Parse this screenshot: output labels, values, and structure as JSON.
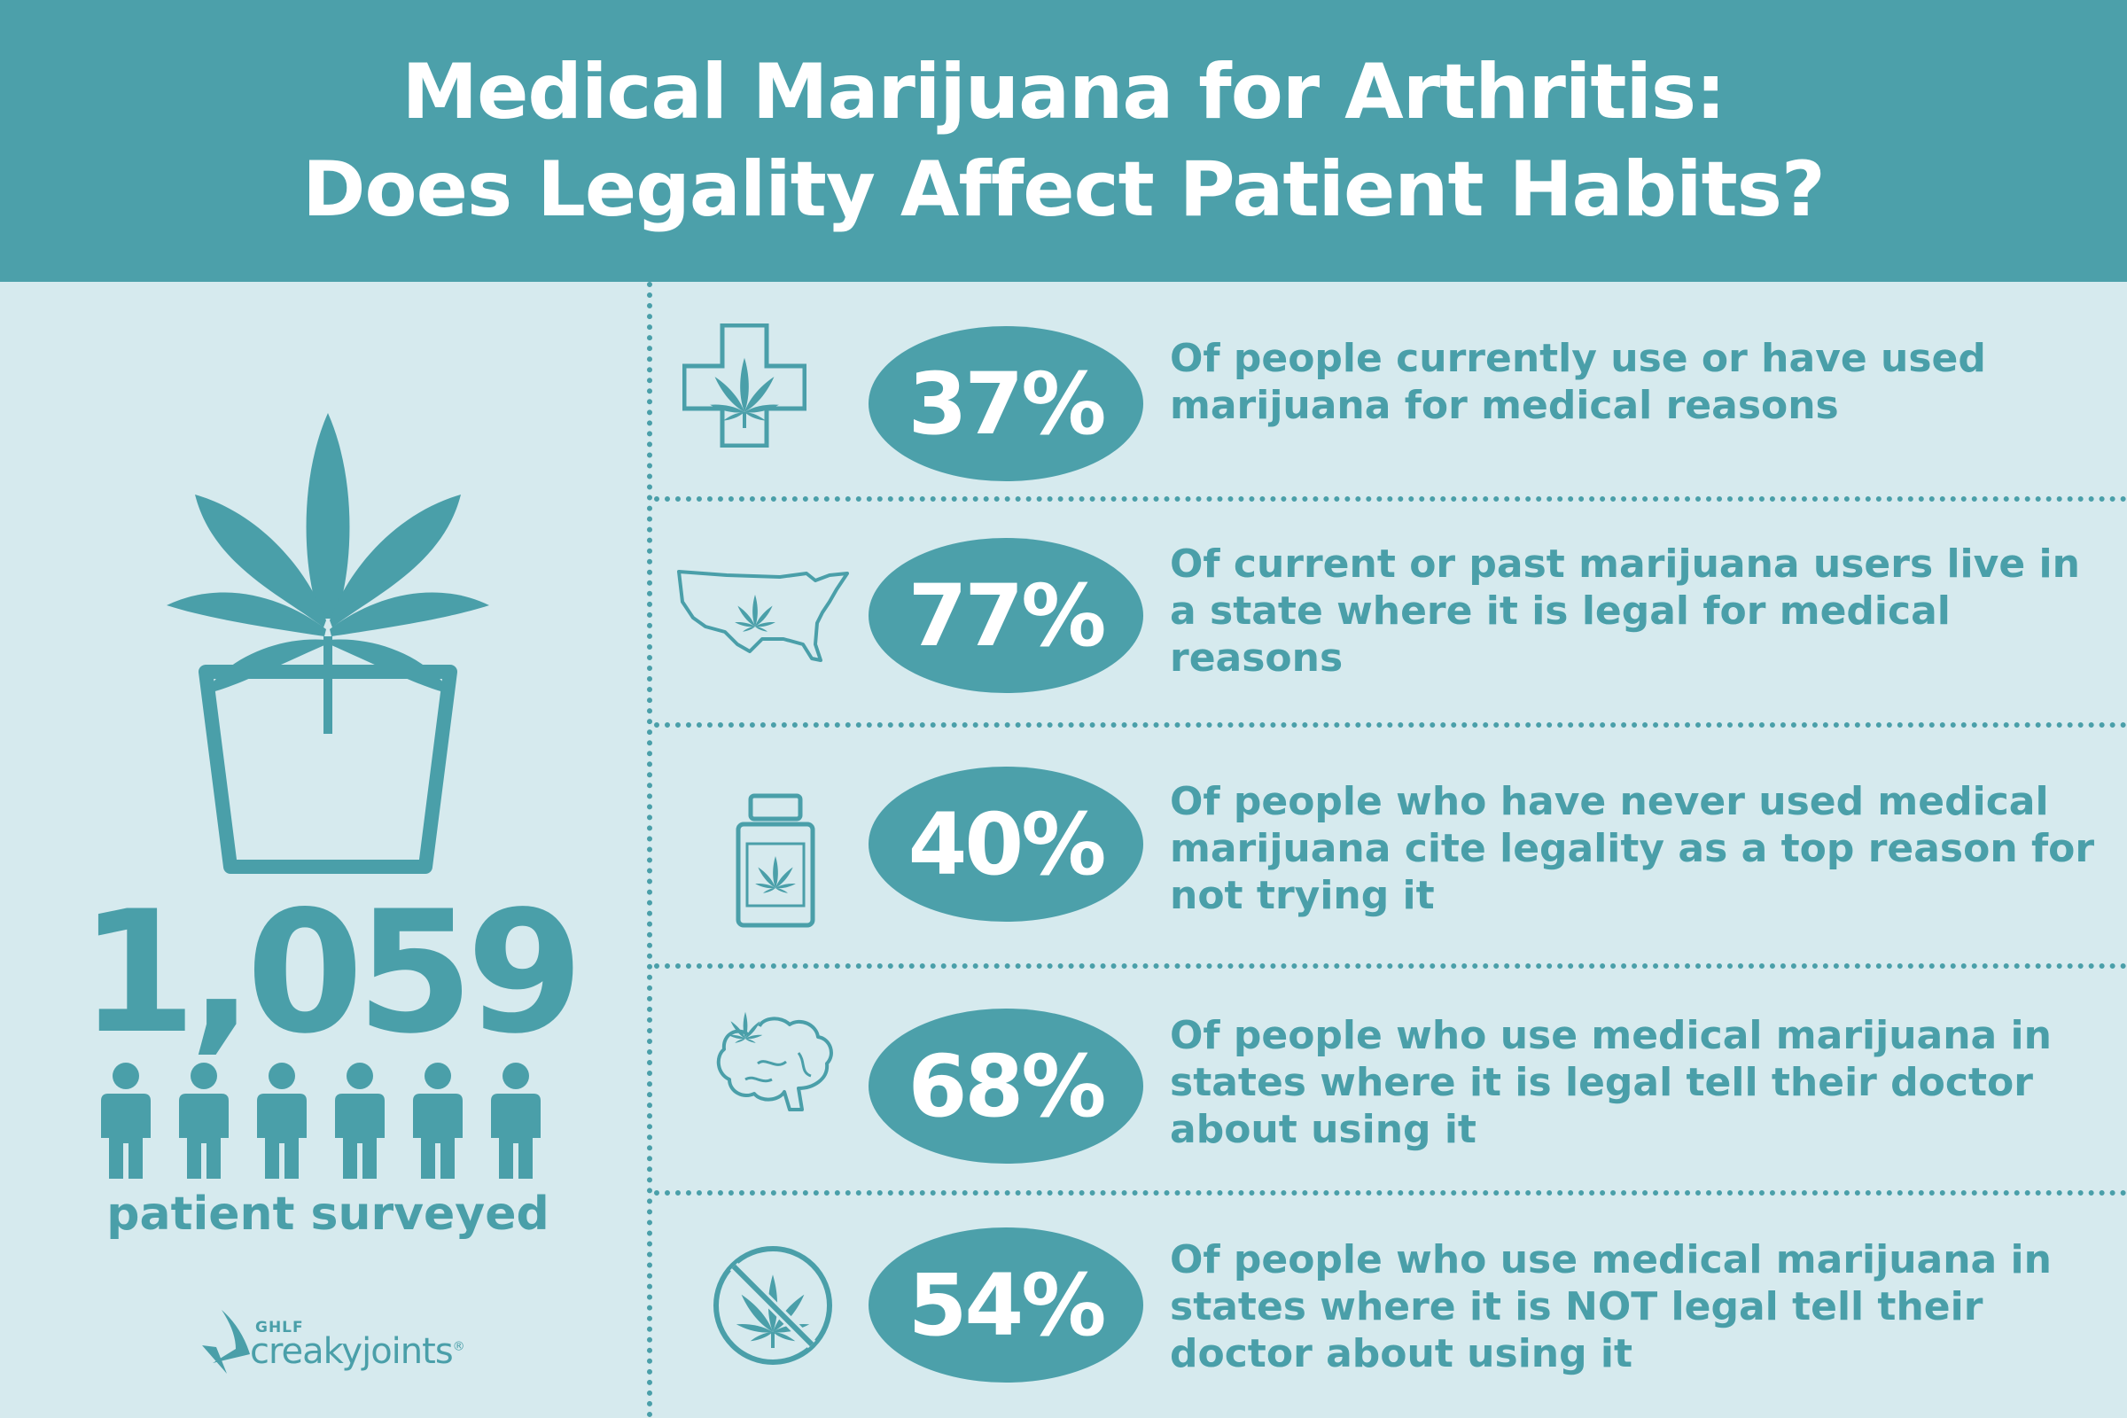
{
  "header": {
    "title_line1": "Medical Marijuana for Arthritis:",
    "title_line2": "Does Legality Affect Patient Habits?"
  },
  "left": {
    "count": "1,059",
    "label": "patient surveyed",
    "people_icons": 6,
    "logo": {
      "org": "GHLF",
      "brand": "creakyjoints",
      "registered": "®"
    }
  },
  "stats": [
    {
      "icon": "cross-leaf-icon",
      "percent": "37%",
      "text": "Of people currently use or have used marijuana for medical reasons"
    },
    {
      "icon": "usa-map-leaf-icon",
      "percent": "77%",
      "text": "Of current or past marijuana users live in a state where it is legal for medical reasons"
    },
    {
      "icon": "pill-bottle-leaf-icon",
      "percent": "40%",
      "text": "Of people who have never used medical marijuana cite legality as a top reason for not trying it"
    },
    {
      "icon": "brain-leaf-icon",
      "percent": "68%",
      "text": "Of people who use medical marijuana in states where it is legal tell their doctor about using it"
    },
    {
      "icon": "no-leaf-icon",
      "percent": "54%",
      "text": "Of people who use medical marijuana in states where it is NOT legal tell their doctor about using it"
    }
  ],
  "colors": {
    "teal": "#4ca0aa",
    "background": "#d6eaee",
    "text_on_teal": "#ffffff"
  }
}
